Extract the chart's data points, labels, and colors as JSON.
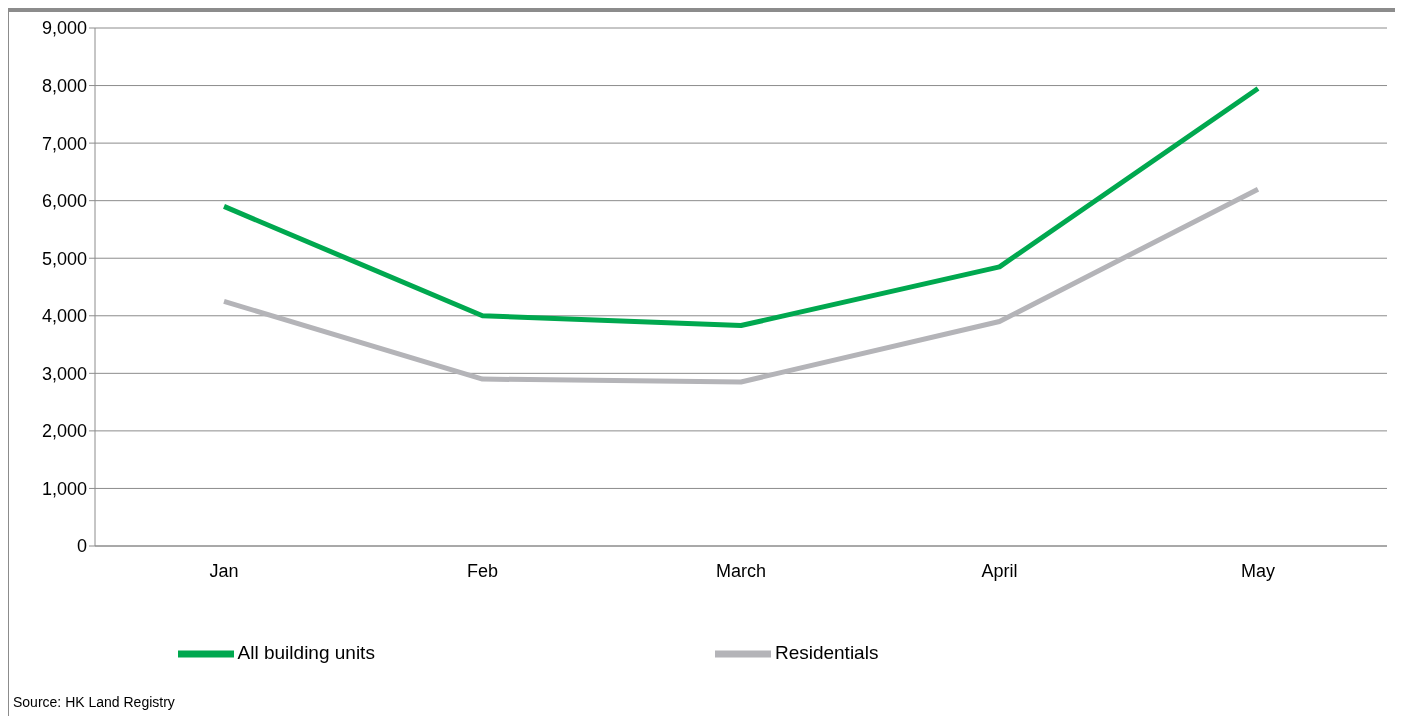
{
  "chart_data": {
    "type": "line",
    "categories": [
      "Jan",
      "Feb",
      "March",
      "April",
      "May"
    ],
    "series": [
      {
        "name": "All building units",
        "color": "#00a84f",
        "values": [
          5900,
          4000,
          3830,
          4850,
          7950
        ]
      },
      {
        "name": "Residentials",
        "color": "#b4b4b8",
        "values": [
          4250,
          2900,
          2850,
          3900,
          6200
        ]
      }
    ],
    "ylim": [
      0,
      9000
    ],
    "yticks": [
      {
        "value": 0,
        "label": "0"
      },
      {
        "value": 1000,
        "label": "1,000"
      },
      {
        "value": 2000,
        "label": "2,000"
      },
      {
        "value": 3000,
        "label": "3,000"
      },
      {
        "value": 4000,
        "label": "4,000"
      },
      {
        "value": 5000,
        "label": "5,000"
      },
      {
        "value": 6000,
        "label": "6,000"
      },
      {
        "value": 7000,
        "label": "7,000"
      },
      {
        "value": 8000,
        "label": "8,000"
      },
      {
        "value": 9000,
        "label": "9,000"
      }
    ],
    "grid": "y",
    "legend": "bottom",
    "marker": "none",
    "line_style": "solid",
    "annotations": [
      "Source: HK Land Registry"
    ]
  }
}
